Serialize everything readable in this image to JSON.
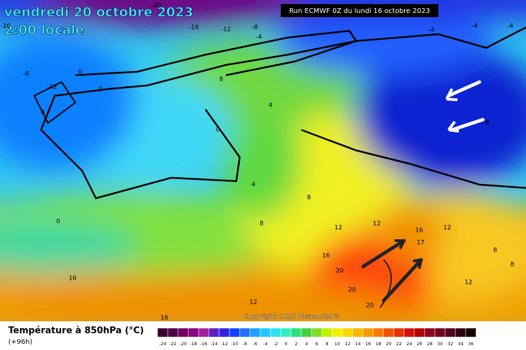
{
  "header": {
    "date": "vendredi 20 octobre 2023",
    "time": "2:00 locale",
    "run": "Run ECMWF 0Z du lundi 16 octobre 2023"
  },
  "copyright": "Copyright 2023 Meteociel.fr",
  "legend": {
    "title": "Température à 850hPa (°C)",
    "lead": "(+96h)",
    "scale": [
      "-24",
      "-22",
      "-20",
      "-18",
      "-16",
      "-14",
      "-12",
      "-10",
      "-8",
      "-6",
      "-4",
      "-2",
      "0",
      "2",
      "4",
      "6",
      "8",
      "10",
      "12",
      "14",
      "16",
      "18",
      "20",
      "22",
      "24",
      "26",
      "28",
      "30",
      "32",
      "34",
      "36"
    ]
  },
  "contour_labels": [
    "-20",
    "-16",
    "-12",
    "-8",
    "-4",
    "-4",
    "-4",
    "-4",
    "-16",
    "-8",
    "-12",
    "0",
    "0",
    "4",
    "8",
    "4",
    "0",
    "-8",
    "4",
    "8",
    "8",
    "0",
    "12",
    "12",
    "16",
    "12",
    "17",
    "8",
    "8",
    "16",
    "20",
    "20",
    "20",
    "12",
    "16",
    "12",
    "16"
  ]
}
